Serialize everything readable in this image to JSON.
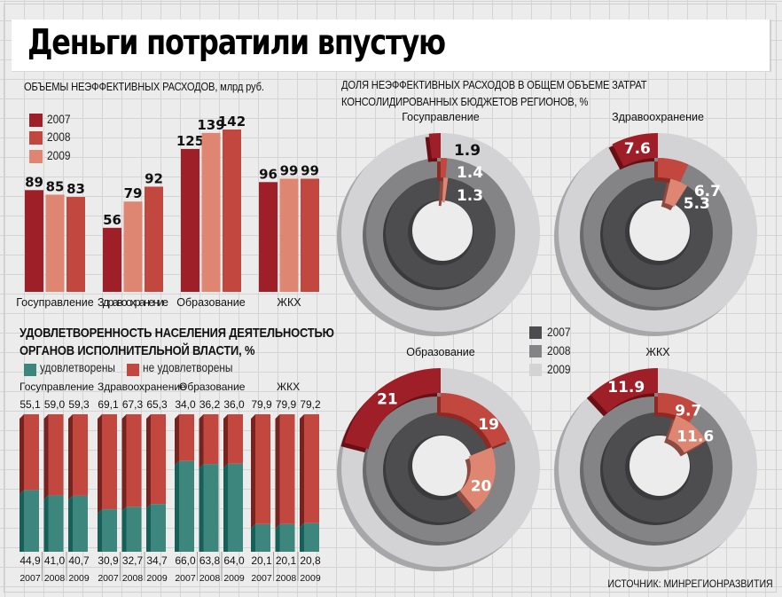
{
  "header": {
    "title": "Деньги потратили впустую"
  },
  "colors": {
    "y2007_red": "#9e1f27",
    "y2008_red": "#c2473e",
    "y2009_red": "#df8672",
    "satisfied": "#3d867e",
    "unsatisfied": "#c2473e",
    "ring_2007": "#4d4d4f",
    "ring_2008": "#848486",
    "ring_2009": "#d3d3d5"
  },
  "source": "ИСТОЧНИК: МИНРЕГИОНРАЗВИТИЯ",
  "chart_data": [
    {
      "id": "inefficient-spending-volume",
      "type": "bar",
      "title": "ОБЪЕМЫ НЕЭФФЕКТИВНЫХ РАСХОДОВ, млрд руб.",
      "xlabel": "",
      "ylabel": "",
      "grid": true,
      "legend_position": "top-left",
      "legend": [
        "2007",
        "2008",
        "2009"
      ],
      "categories": [
        "Госуправление",
        "Здравоохранение",
        "Образование",
        "ЖКХ"
      ],
      "series": [
        {
          "name": "2007",
          "values": [
            89,
            56,
            125,
            96
          ]
        },
        {
          "name": "2008",
          "values": [
            85,
            79,
            139,
            99
          ]
        },
        {
          "name": "2009",
          "values": [
            83,
            92,
            142,
            99
          ]
        }
      ],
      "ylim": [
        0,
        142
      ]
    },
    {
      "id": "satisfaction",
      "type": "bar",
      "stacked": true,
      "title_line1": "УДОВЛЕТВОРЕННОСТЬ НАСЕЛЕНИЯ ДЕЯТЕЛЬНОСТЬЮ",
      "title_line2": "ОРГАНОВ ИСПОЛНИТЕЛЬНОЙ ВЛАСТИ,  %",
      "legend_position": "top-left",
      "legend": [
        "удовлетворены",
        "не удовлетворены"
      ],
      "categories": [
        "Госуправление",
        "Здравоохранение",
        "Образование",
        "ЖКХ"
      ],
      "years": [
        "2007",
        "2008",
        "2009"
      ],
      "series": [
        {
          "name": "не удовлетворены",
          "values": [
            [
              55.1,
              59.0,
              59.3
            ],
            [
              69.1,
              67.3,
              65.3
            ],
            [
              34.0,
              36.2,
              36.0
            ],
            [
              79.9,
              79.9,
              79.2
            ]
          ],
          "labels": [
            [
              "55,1",
              "59,0",
              "59,3"
            ],
            [
              "69,1",
              "67,3",
              "65,3"
            ],
            [
              "34,0",
              "36,2",
              "36,0"
            ],
            [
              "79,9",
              "79,9",
              "79,2"
            ]
          ]
        },
        {
          "name": "удовлетворены",
          "values": [
            [
              44.9,
              41.0,
              40.7
            ],
            [
              30.9,
              32.7,
              34.7
            ],
            [
              66.0,
              63.8,
              64.0
            ],
            [
              20.1,
              20.1,
              20.8
            ]
          ],
          "labels": [
            [
              "44,9",
              "41,0",
              "40,7"
            ],
            [
              "30,9",
              "32,7",
              "34,7"
            ],
            [
              "66,0",
              "63,8",
              "64,0"
            ],
            [
              "20,1",
              "20,1",
              "20,8"
            ]
          ]
        }
      ],
      "ylim": [
        0,
        100
      ]
    },
    {
      "id": "inefficient-share",
      "type": "pie",
      "variant": "concentric-donut",
      "title_line1": "ДОЛЯ НЕЭФФЕКТИВНЫХ РАСХОДОВ В ОБЩЕМ ОБЪЕМЕ ЗАТРАТ",
      "title_line2": "КОНСОЛИДИРОВАННЫХ БЮДЖЕТОВ РЕГИОНОВ, %",
      "legend_position": "center",
      "legend": [
        "2007",
        "2008",
        "2009"
      ],
      "rings_outer_to_inner": [
        "outer",
        "middle",
        "inner"
      ],
      "panels": [
        {
          "category": "Госуправление",
          "outer": 1.9,
          "middle": 1.4,
          "inner": 1.3,
          "labels": {
            "outer": "1.9",
            "middle": "1.4",
            "inner": "1.3"
          }
        },
        {
          "category": "Здравоохранение",
          "outer": 7.6,
          "middle": 6.7,
          "inner": 5.3,
          "labels": {
            "outer": "7.6",
            "middle": "6.7",
            "inner": "5.3"
          }
        },
        {
          "category": "Образование",
          "outer": 21,
          "middle": 19,
          "inner": 20,
          "labels": {
            "outer": "21",
            "middle": "19",
            "inner": "20"
          }
        },
        {
          "category": "ЖКХ",
          "outer": 11.9,
          "middle": 9.7,
          "inner": 11.6,
          "labels": {
            "outer": "11.9",
            "middle": "9.7",
            "inner": "11.6"
          }
        }
      ]
    }
  ]
}
